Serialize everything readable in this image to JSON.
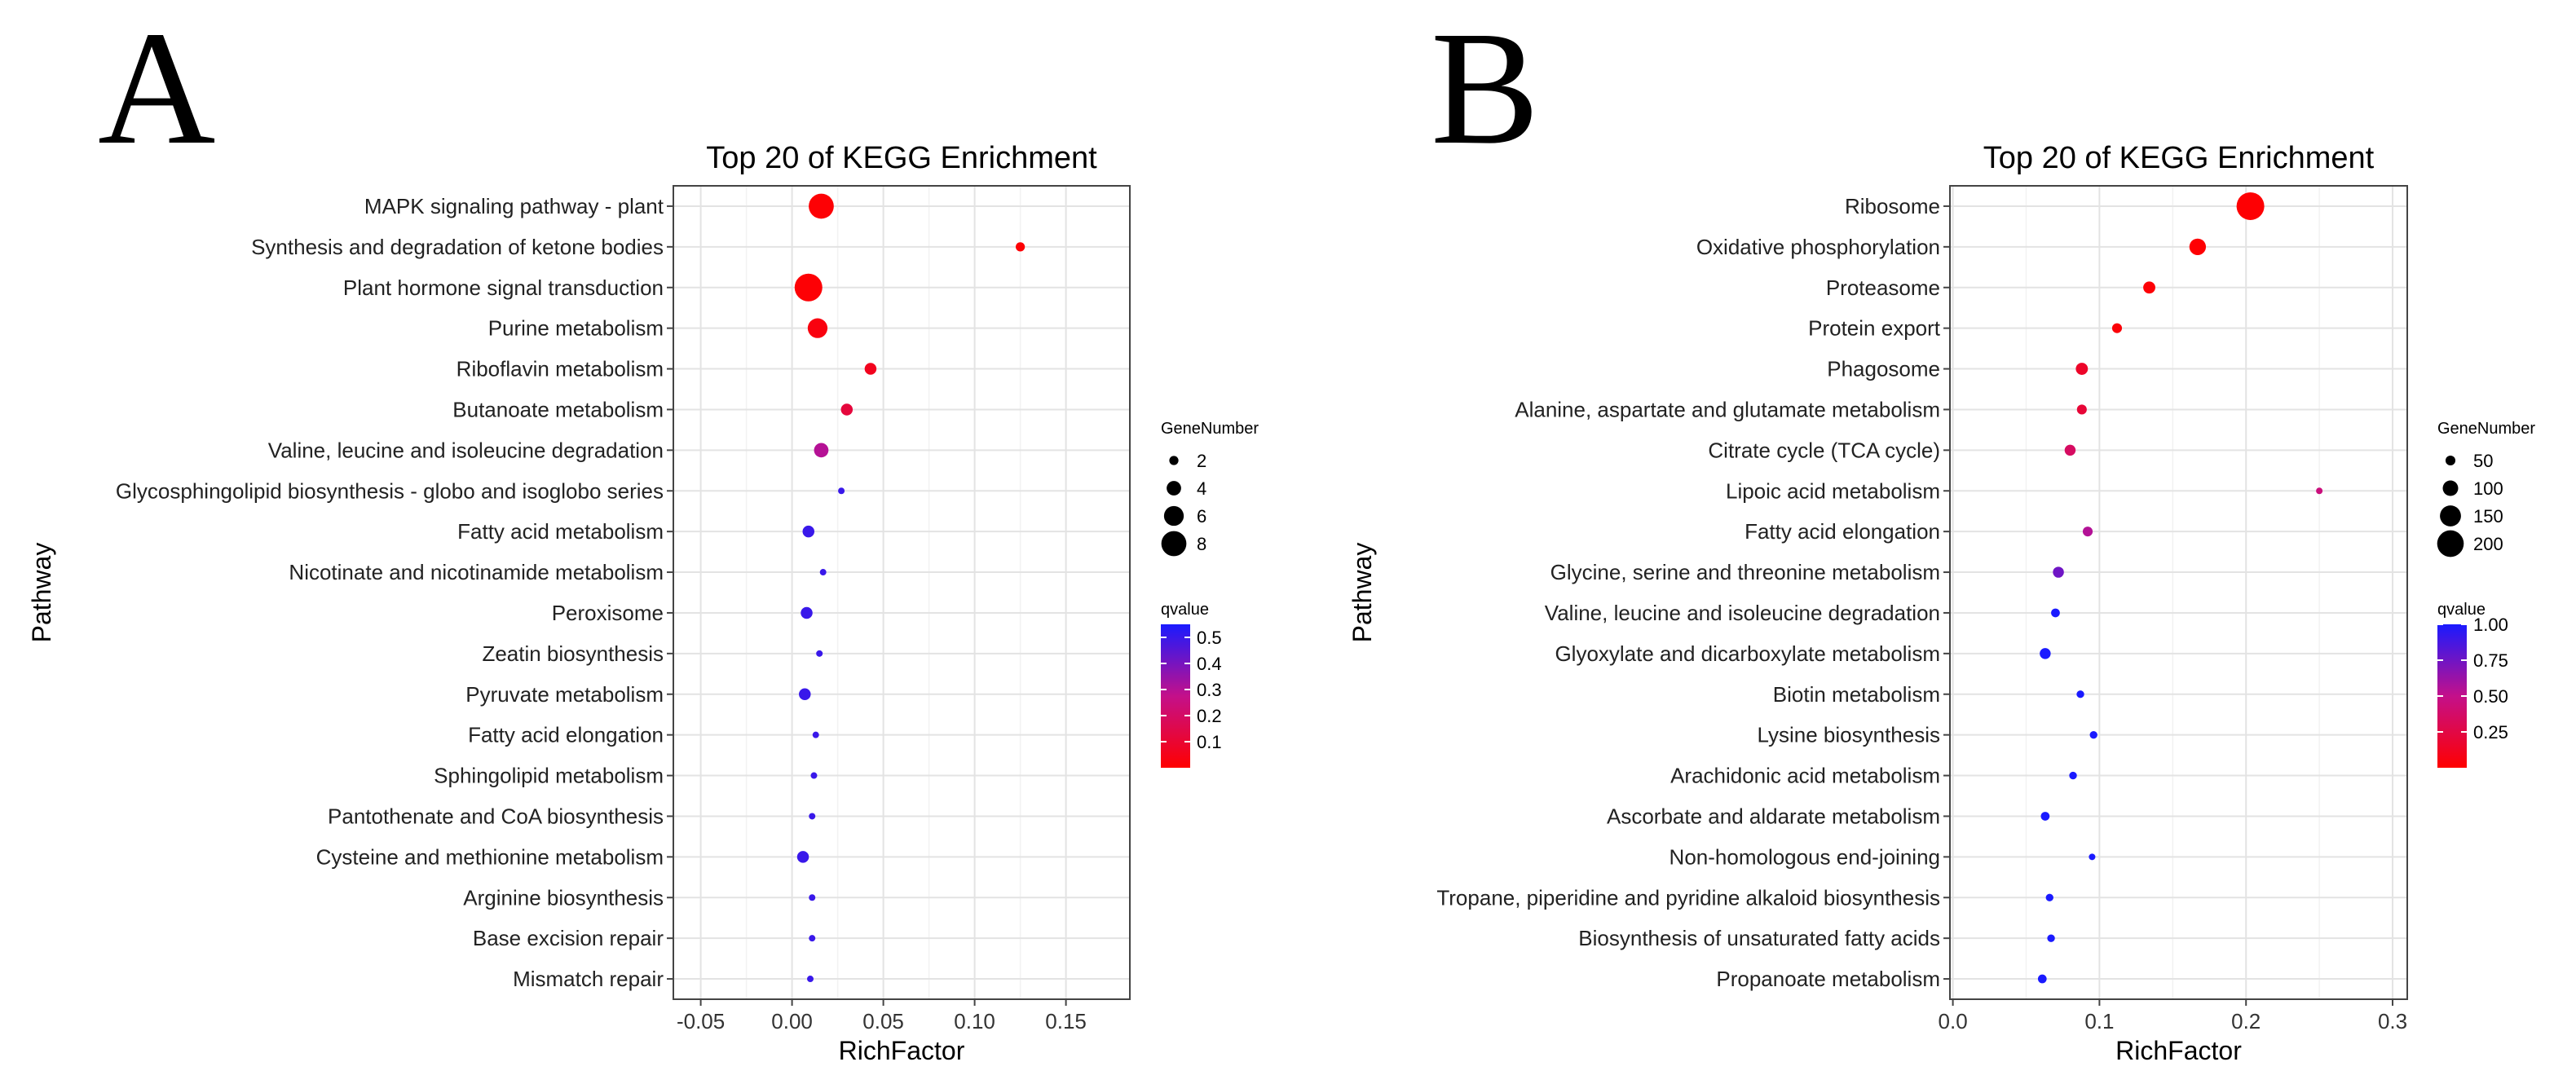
{
  "chart_data": [
    {
      "panel": "A",
      "type": "scatter",
      "title": "Top 20 of KEGG Enrichment",
      "xlabel": "RichFactor",
      "ylabel": "Pathway",
      "xlim": [
        -0.065,
        0.185
      ],
      "xticks": [
        -0.05,
        0.0,
        0.05,
        0.1,
        0.15
      ],
      "xtick_labels": [
        "-0.05",
        "0.00",
        "0.05",
        "0.10",
        "0.15"
      ],
      "size_legend": {
        "title": "GeneNumber",
        "values": [
          2,
          4,
          6,
          8
        ],
        "labels": [
          "2",
          "4",
          "6",
          "8"
        ],
        "domain": [
          1,
          9
        ]
      },
      "color_legend": {
        "title": "qvalue",
        "domain": [
          0.0,
          0.55
        ],
        "ticks": [
          0.5,
          0.4,
          0.3,
          0.2,
          0.1
        ],
        "labels": [
          "0.5",
          "0.4",
          "0.3",
          "0.2",
          "0.1"
        ]
      },
      "pathways": [
        "MAPK signaling pathway - plant",
        "Synthesis and degradation of ketone bodies",
        "Plant hormone signal transduction",
        "Purine metabolism",
        "Riboflavin metabolism",
        "Butanoate metabolism",
        "Valine, leucine and isoleucine degradation",
        "Glycosphingolipid biosynthesis - globo and isoglobo series",
        "Fatty acid metabolism",
        "Nicotinate and nicotinamide metabolism",
        "Peroxisome",
        "Zeatin biosynthesis",
        "Pyruvate metabolism",
        "Fatty acid elongation",
        "Sphingolipid metabolism",
        "Pantothenate and CoA biosynthesis",
        "Cysteine and methionine metabolism",
        "Arginine biosynthesis",
        "Base excision repair",
        "Mismatch repair"
      ],
      "rich_factor": [
        0.016,
        0.125,
        0.009,
        0.014,
        0.043,
        0.03,
        0.016,
        0.027,
        0.009,
        0.017,
        0.008,
        0.015,
        0.007,
        0.013,
        0.012,
        0.011,
        0.006,
        0.011,
        0.011,
        0.01
      ],
      "gene_number": [
        8,
        2,
        9,
        6,
        3,
        3,
        4,
        1,
        3,
        1,
        3,
        1,
        3,
        1,
        1,
        1,
        3,
        1,
        1,
        1
      ],
      "qvalue": [
        0.01,
        0.01,
        0.01,
        0.03,
        0.06,
        0.12,
        0.3,
        0.5,
        0.5,
        0.5,
        0.5,
        0.5,
        0.5,
        0.5,
        0.5,
        0.5,
        0.5,
        0.5,
        0.5,
        0.5
      ]
    },
    {
      "panel": "B",
      "type": "scatter",
      "title": "Top 20 of KEGG Enrichment",
      "xlabel": "RichFactor",
      "ylabel": "Pathway",
      "xlim": [
        -0.002,
        0.31
      ],
      "xticks": [
        0.0,
        0.1,
        0.2,
        0.3
      ],
      "xtick_labels": [
        "0.0",
        "0.1",
        "0.2",
        "0.3"
      ],
      "size_legend": {
        "title": "GeneNumber",
        "values": [
          50,
          100,
          150,
          200
        ],
        "labels": [
          "50",
          "100",
          "150",
          "200"
        ],
        "domain": [
          20,
          210
        ]
      },
      "color_legend": {
        "title": "qvalue",
        "domain": [
          0.0,
          1.0
        ],
        "ticks": [
          1.0,
          0.75,
          0.5,
          0.25
        ],
        "labels": [
          "1.00",
          "0.75",
          "0.50",
          "0.25"
        ]
      },
      "pathways": [
        "Ribosome",
        "Oxidative phosphorylation",
        "Proteasome",
        "Protein export",
        "Phagosome",
        "Alanine, aspartate and glutamate metabolism",
        "Citrate cycle (TCA cycle)",
        "Lipoic acid metabolism",
        "Fatty acid elongation",
        "Glycine, serine and threonine metabolism",
        "Valine, leucine and isoleucine degradation",
        "Glyoxylate and dicarboxylate metabolism",
        "Biotin metabolism",
        "Lysine biosynthesis",
        "Arachidonic acid metabolism",
        "Ascorbate and aldarate metabolism",
        "Non-homologous end-joining",
        "Tropane, piperidine and pyridine alkaloid biosynthesis",
        "Biosynthesis of unsaturated fatty acids",
        "Propanoate metabolism"
      ],
      "rich_factor": [
        0.203,
        0.167,
        0.134,
        0.112,
        0.088,
        0.088,
        0.08,
        0.25,
        0.092,
        0.072,
        0.07,
        0.063,
        0.087,
        0.096,
        0.082,
        0.063,
        0.095,
        0.066,
        0.067,
        0.061
      ],
      "gene_number": [
        210,
        110,
        70,
        50,
        70,
        50,
        60,
        20,
        50,
        60,
        40,
        60,
        30,
        30,
        30,
        40,
        20,
        30,
        30,
        40
      ],
      "qvalue": [
        0.01,
        0.01,
        0.02,
        0.03,
        0.15,
        0.2,
        0.35,
        0.45,
        0.55,
        0.75,
        1.0,
        1.0,
        1.0,
        1.0,
        1.0,
        1.0,
        1.0,
        1.0,
        1.0,
        1.0
      ]
    }
  ],
  "panel_labels": {
    "a": "A",
    "b": "B"
  }
}
